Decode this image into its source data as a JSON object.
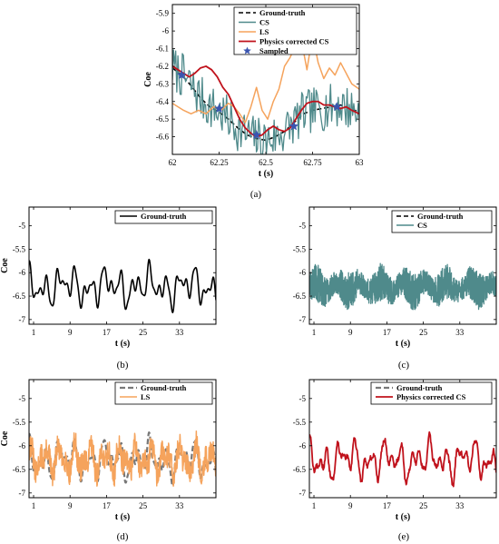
{
  "colors": {
    "ground_truth": "#000000",
    "cs": "#4f8a8b",
    "ls": "#f5a35c",
    "physics": "#c0121c",
    "sampled": "#3a55b0"
  },
  "chart_data": [
    {
      "id": "a",
      "panel_label": "(a)",
      "type": "line",
      "xlabel": "t (s)",
      "ylabel": "Coe",
      "xlim": [
        62,
        63
      ],
      "ylim": [
        -6.7,
        -5.85
      ],
      "xticks": [
        62,
        62.25,
        62.5,
        62.75,
        63
      ],
      "xtick_labels": [
        "62",
        "62.25",
        "62.5",
        "62.75",
        "63"
      ],
      "yticks": [
        -5.9,
        -6,
        -6.1,
        -6.2,
        -6.3,
        -6.4,
        -6.5,
        -6.6
      ],
      "ytick_labels": [
        "-5.9",
        "-6",
        "-6.1",
        "-6.2",
        "-6.3",
        "-6.4",
        "-6.5",
        "-6.6"
      ],
      "grid": false,
      "legend_position": "top-right",
      "series": [
        {
          "name": "Ground-truth",
          "key": "ground_truth",
          "style": "dashed",
          "x": [
            62,
            62.05,
            62.1,
            62.15,
            62.2,
            62.25,
            62.3,
            62.35,
            62.4,
            62.45,
            62.5,
            62.55,
            62.6,
            62.65,
            62.7,
            62.75,
            62.8,
            62.85,
            62.9,
            62.95,
            63
          ],
          "y": [
            -6.21,
            -6.25,
            -6.31,
            -6.38,
            -6.43,
            -6.46,
            -6.5,
            -6.55,
            -6.59,
            -6.61,
            -6.62,
            -6.6,
            -6.57,
            -6.52,
            -6.47,
            -6.45,
            -6.44,
            -6.43,
            -6.42,
            -6.44,
            -6.46
          ]
        },
        {
          "name": "CS",
          "key": "cs",
          "style": "solid",
          "generate": "noisy",
          "x_start": 62,
          "x_end": 63,
          "n": 170,
          "amplitude": 0.13,
          "seed": 7
        },
        {
          "name": "LS",
          "key": "ls",
          "style": "solid",
          "x": [
            62,
            62.03,
            62.06,
            62.1,
            62.14,
            62.18,
            62.22,
            62.26,
            62.3,
            62.33,
            62.36,
            62.39,
            62.42,
            62.45,
            62.48,
            62.51,
            62.54,
            62.57,
            62.6,
            62.63,
            62.66,
            62.69,
            62.72,
            62.75,
            62.78,
            62.81,
            62.84,
            62.87,
            62.9,
            62.93,
            62.96,
            63
          ],
          "y": [
            -6.41,
            -6.43,
            -6.45,
            -6.47,
            -6.45,
            -6.47,
            -6.43,
            -6.45,
            -6.41,
            -6.43,
            -6.47,
            -6.52,
            -6.43,
            -6.32,
            -6.45,
            -6.5,
            -6.4,
            -6.33,
            -6.2,
            -6.15,
            -6.08,
            -6.05,
            -6.22,
            -6.02,
            -6.18,
            -6.27,
            -6.21,
            -6.25,
            -6.18,
            -6.24,
            -6.3,
            -6.33
          ]
        },
        {
          "name": "Physics corrected CS",
          "key": "physics",
          "style": "solid",
          "x": [
            62,
            62.03,
            62.06,
            62.09,
            62.12,
            62.15,
            62.18,
            62.21,
            62.24,
            62.27,
            62.3,
            62.33,
            62.36,
            62.39,
            62.42,
            62.45,
            62.48,
            62.51,
            62.54,
            62.57,
            62.6,
            62.63,
            62.66,
            62.69,
            62.72,
            62.75,
            62.78,
            62.81,
            62.84,
            62.87,
            62.9,
            62.93,
            62.96,
            63
          ],
          "y": [
            -6.2,
            -6.22,
            -6.24,
            -6.26,
            -6.24,
            -6.21,
            -6.2,
            -6.22,
            -6.26,
            -6.32,
            -6.36,
            -6.43,
            -6.5,
            -6.55,
            -6.58,
            -6.6,
            -6.59,
            -6.56,
            -6.54,
            -6.56,
            -6.57,
            -6.55,
            -6.5,
            -6.45,
            -6.41,
            -6.4,
            -6.4,
            -6.42,
            -6.42,
            -6.43,
            -6.44,
            -6.43,
            -6.45,
            -6.47
          ]
        },
        {
          "name": "Sampled",
          "key": "sampled",
          "style": "marker",
          "x": [
            62.05,
            62.25,
            62.45,
            62.65,
            62.88
          ],
          "y": [
            -6.25,
            -6.44,
            -6.59,
            -6.54,
            -6.43
          ]
        }
      ]
    },
    {
      "id": "b",
      "panel_label": "(b)",
      "type": "line",
      "xlabel": "t (s)",
      "ylabel": "Coe",
      "xlim": [
        0,
        41
      ],
      "ylim": [
        -7.1,
        -4.6
      ],
      "xticks": [
        1,
        9,
        17,
        25,
        33
      ],
      "xtick_labels": [
        "1",
        "9",
        "17",
        "25",
        "33"
      ],
      "yticks": [
        -5,
        -5.5,
        -6,
        -6.5,
        -7
      ],
      "ytick_labels": [
        "-5",
        "-5.5",
        "-6",
        "-6.5",
        "-7"
      ],
      "grid": false,
      "legend_position": "top-right",
      "series": [
        {
          "name": "Ground-truth",
          "key": "ground_truth",
          "style": "solid",
          "generate": "smooth",
          "seed": 11
        }
      ]
    },
    {
      "id": "c",
      "panel_label": "(c)",
      "type": "line",
      "xlabel": "t (s)",
      "ylabel": "",
      "xlim": [
        0,
        41
      ],
      "ylim": [
        -7.1,
        -4.6
      ],
      "xticks": [
        1,
        9,
        17,
        25,
        33
      ],
      "xtick_labels": [
        "1",
        "9",
        "17",
        "25",
        "33"
      ],
      "yticks": [
        -5,
        -5.5,
        -6,
        -6.5,
        -7
      ],
      "ytick_labels": [
        "-5",
        "-5.5",
        "-6",
        "-6.5",
        "-7"
      ],
      "grid": false,
      "legend_position": "top-right",
      "series": [
        {
          "name": "Ground-truth",
          "key": "ground_truth",
          "style": "dashed",
          "generate": "smooth",
          "seed": 11,
          "legend_only": true
        },
        {
          "name": "CS",
          "key": "cs",
          "style": "solid",
          "generate": "band",
          "seed": 23
        }
      ]
    },
    {
      "id": "d",
      "panel_label": "(d)",
      "type": "line",
      "xlabel": "t (s)",
      "ylabel": "Coe",
      "xlim": [
        0,
        41
      ],
      "ylim": [
        -7.1,
        -4.6
      ],
      "xticks": [
        1,
        9,
        17,
        25,
        33
      ],
      "xtick_labels": [
        "1",
        "9",
        "17",
        "25",
        "33"
      ],
      "yticks": [
        -5,
        -5.5,
        -6,
        -6.5,
        -7
      ],
      "ytick_labels": [
        "-5",
        "-5.5",
        "-6",
        "-6.5",
        "-7"
      ],
      "grid": false,
      "legend_position": "top-right",
      "series": [
        {
          "name": "Ground-truth",
          "key": "ground_truth",
          "style": "dashed-gray",
          "generate": "smooth",
          "seed": 11
        },
        {
          "name": "LS",
          "key": "ls",
          "style": "solid",
          "generate": "jagged",
          "seed": 31
        }
      ]
    },
    {
      "id": "e",
      "panel_label": "(e)",
      "type": "line",
      "xlabel": "t (s)",
      "ylabel": "",
      "xlim": [
        0,
        41
      ],
      "ylim": [
        -7.1,
        -4.6
      ],
      "xticks": [
        1,
        9,
        17,
        25,
        33
      ],
      "xtick_labels": [
        "1",
        "9",
        "17",
        "25",
        "33"
      ],
      "yticks": [
        -5,
        -5.5,
        -6,
        -6.5,
        -7
      ],
      "ytick_labels": [
        "-5",
        "-5.5",
        "-6",
        "-6.5",
        "-7"
      ],
      "grid": false,
      "legend_position": "top-right",
      "series": [
        {
          "name": "Ground-truth",
          "key": "ground_truth",
          "style": "dashed-gray",
          "generate": "smooth",
          "seed": 11,
          "legend_only": true
        },
        {
          "name": "Physics corrected CS",
          "key": "physics",
          "style": "solid",
          "generate": "smooth",
          "seed": 11,
          "wiggle": 0.05
        }
      ]
    }
  ]
}
